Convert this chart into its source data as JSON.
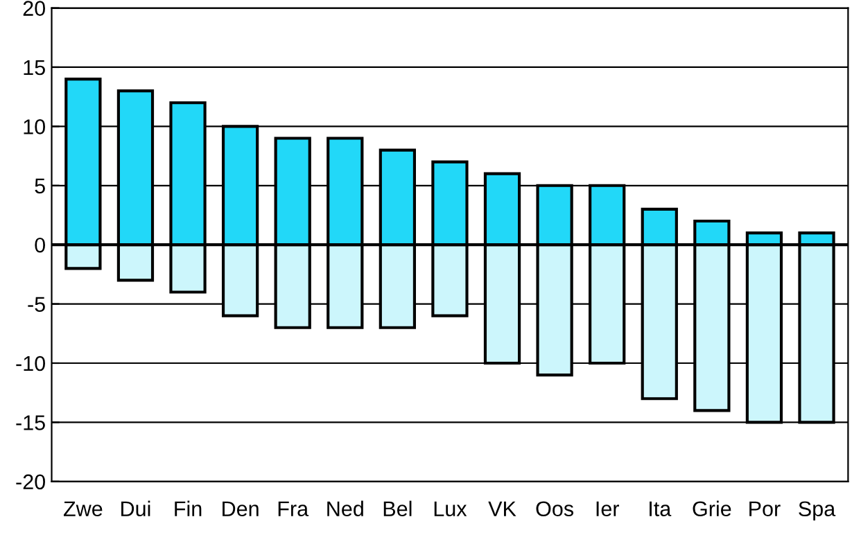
{
  "chart_data": {
    "type": "bar",
    "stacked": true,
    "categories": [
      "Zwe",
      "Dui",
      "Fin",
      "Den",
      "Fra",
      "Ned",
      "Bel",
      "Lux",
      "VK",
      "Oos",
      "Ier",
      "Ita",
      "Grie",
      "Por",
      "Spa"
    ],
    "series": [
      {
        "color": "#22d8f8",
        "values": [
          14,
          13,
          12,
          10,
          9,
          9,
          8,
          7,
          6,
          5,
          5,
          3,
          2,
          1,
          1
        ]
      },
      {
        "color": "#ccf6fc",
        "values": [
          -2,
          -3,
          -4,
          -6,
          -7,
          -7,
          -7,
          -6,
          -10,
          -11,
          -10,
          -13,
          -14,
          -15,
          -15
        ]
      }
    ],
    "ylim": [
      -20,
      20
    ],
    "yticks": [
      -20,
      -15,
      -10,
      -5,
      0,
      5,
      10,
      15,
      20
    ],
    "grid": "y",
    "legend": false
  }
}
